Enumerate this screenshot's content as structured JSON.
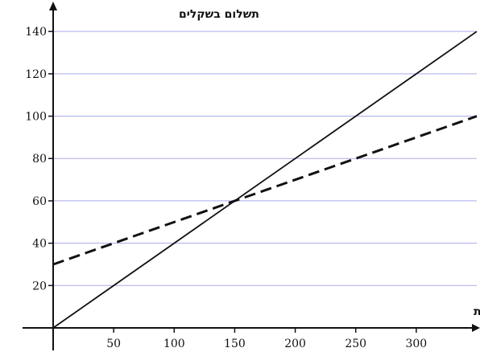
{
  "chart_data": {
    "type": "line",
    "title": "",
    "xlabel": "מספר שיחות",
    "ylabel": "תשלום בשקלים",
    "xlim": [
      0,
      350
    ],
    "ylim": [
      0,
      145
    ],
    "x_ticks": [
      50,
      100,
      150,
      200,
      250,
      300
    ],
    "y_ticks": [
      20,
      40,
      60,
      80,
      100,
      120,
      140
    ],
    "grid": "horizontal",
    "grid_color": "#aaaaee",
    "legend": "none",
    "series": [
      {
        "style": "solid",
        "color": "#111111",
        "x": [
          0,
          350
        ],
        "y": [
          0,
          140
        ]
      },
      {
        "style": "dashed",
        "color": "#111111",
        "x": [
          0,
          350
        ],
        "y": [
          30,
          100
        ]
      }
    ]
  }
}
